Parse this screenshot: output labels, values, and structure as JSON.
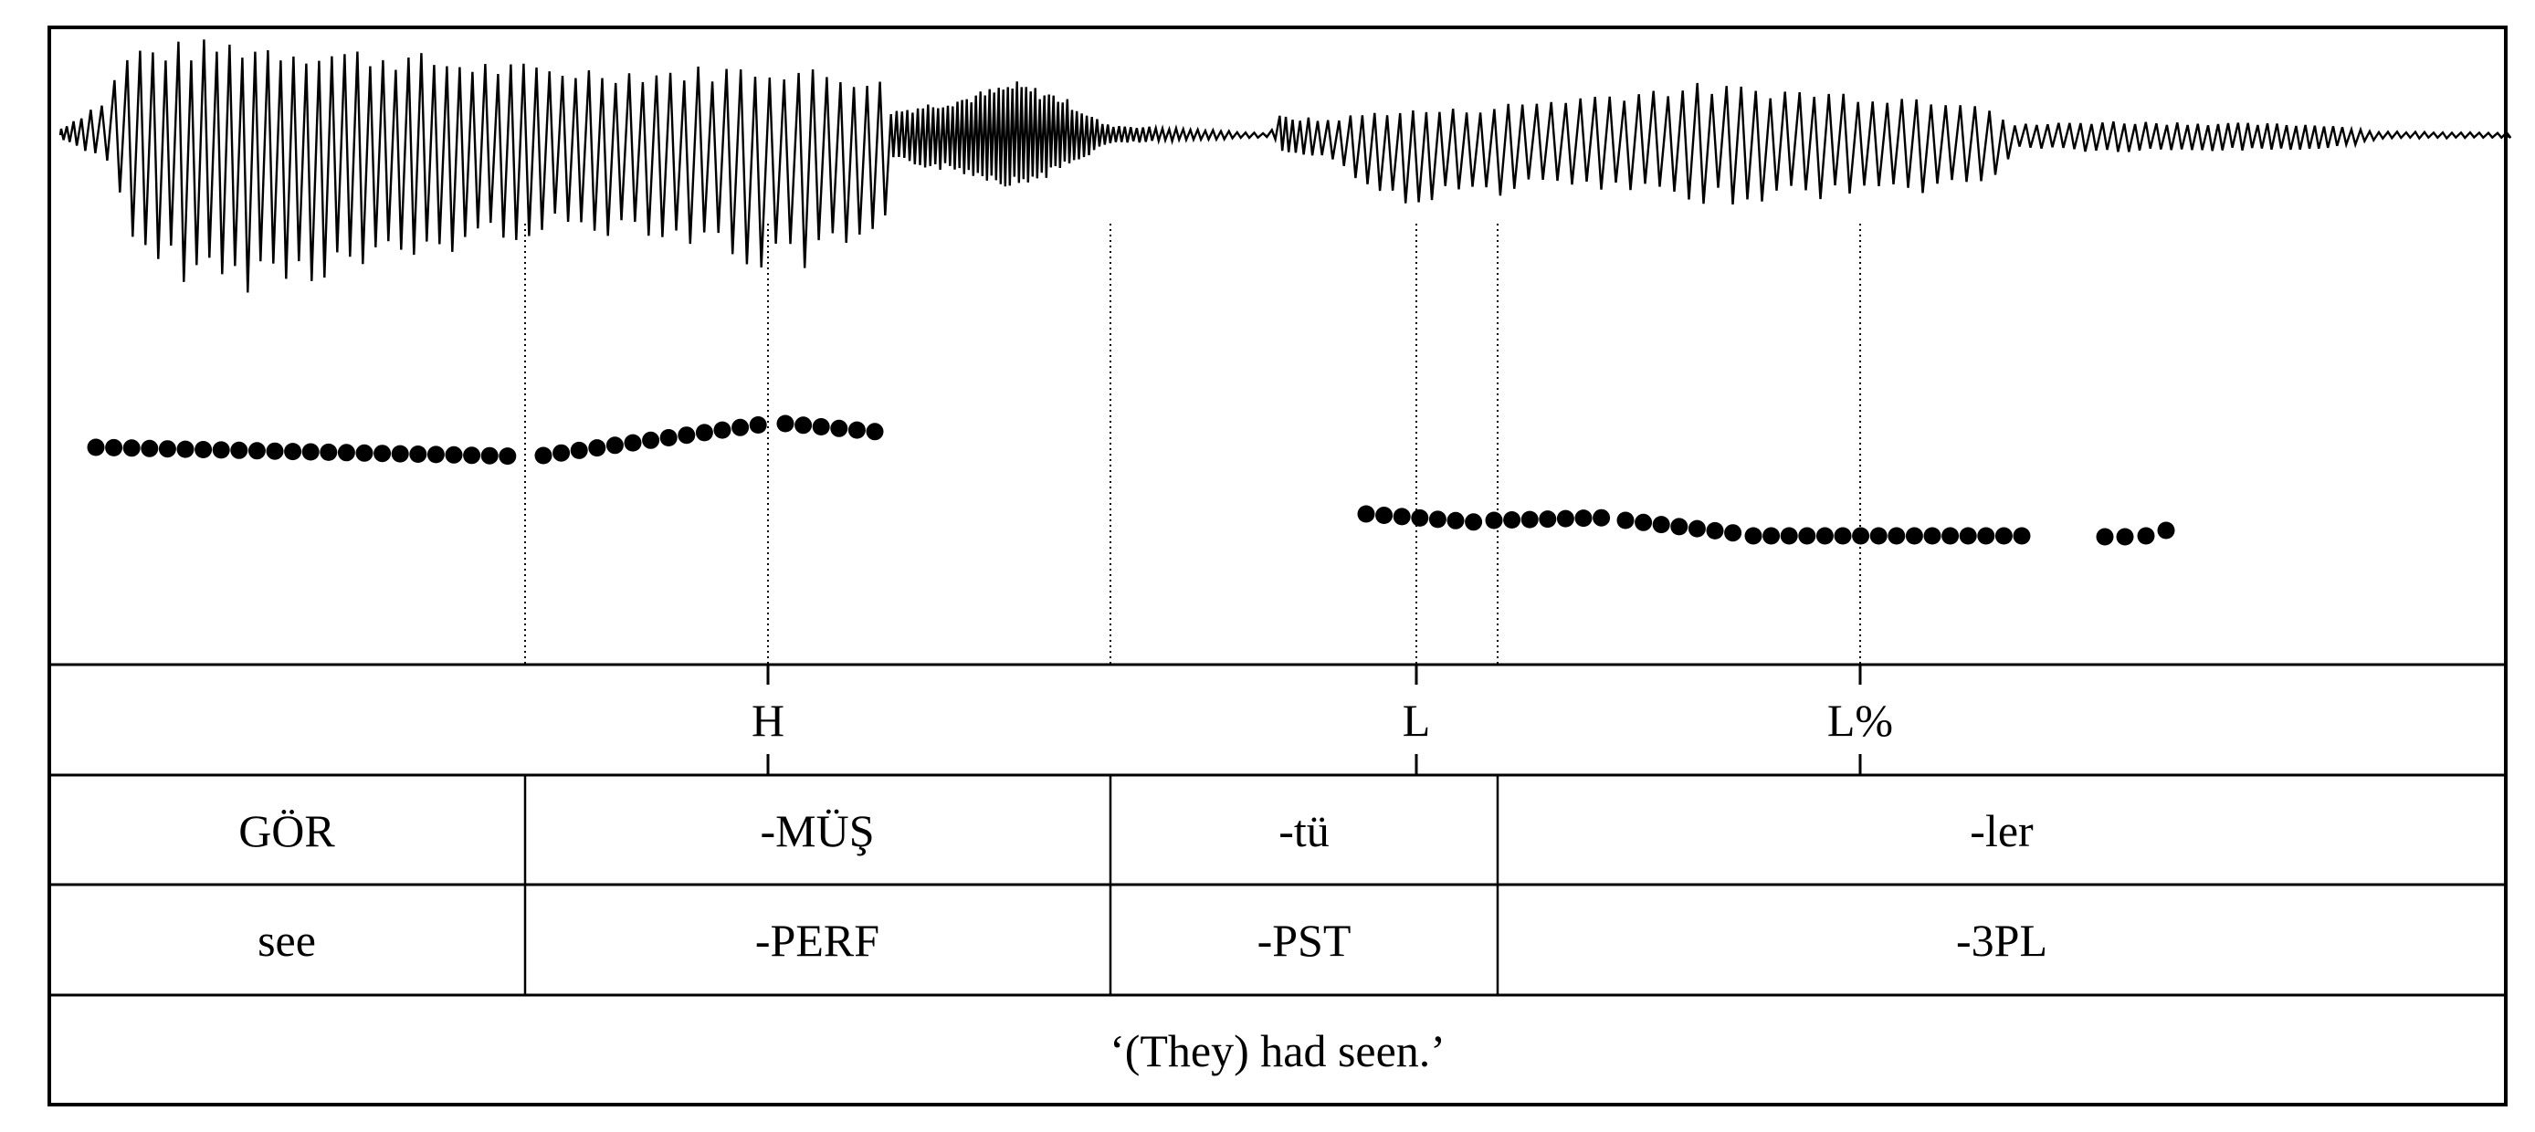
{
  "tone_tier": [
    "H",
    "L",
    "L%"
  ],
  "morpheme_tier": [
    "GÖR",
    "-MÜŞ",
    "-tü",
    "-ler"
  ],
  "gloss_tier": [
    "see",
    "-PERF",
    "-PST",
    "-3PL"
  ],
  "translation": "‘(They) had seen.’",
  "colors": {
    "ink": "#000000",
    "background": "#ffffff"
  }
}
